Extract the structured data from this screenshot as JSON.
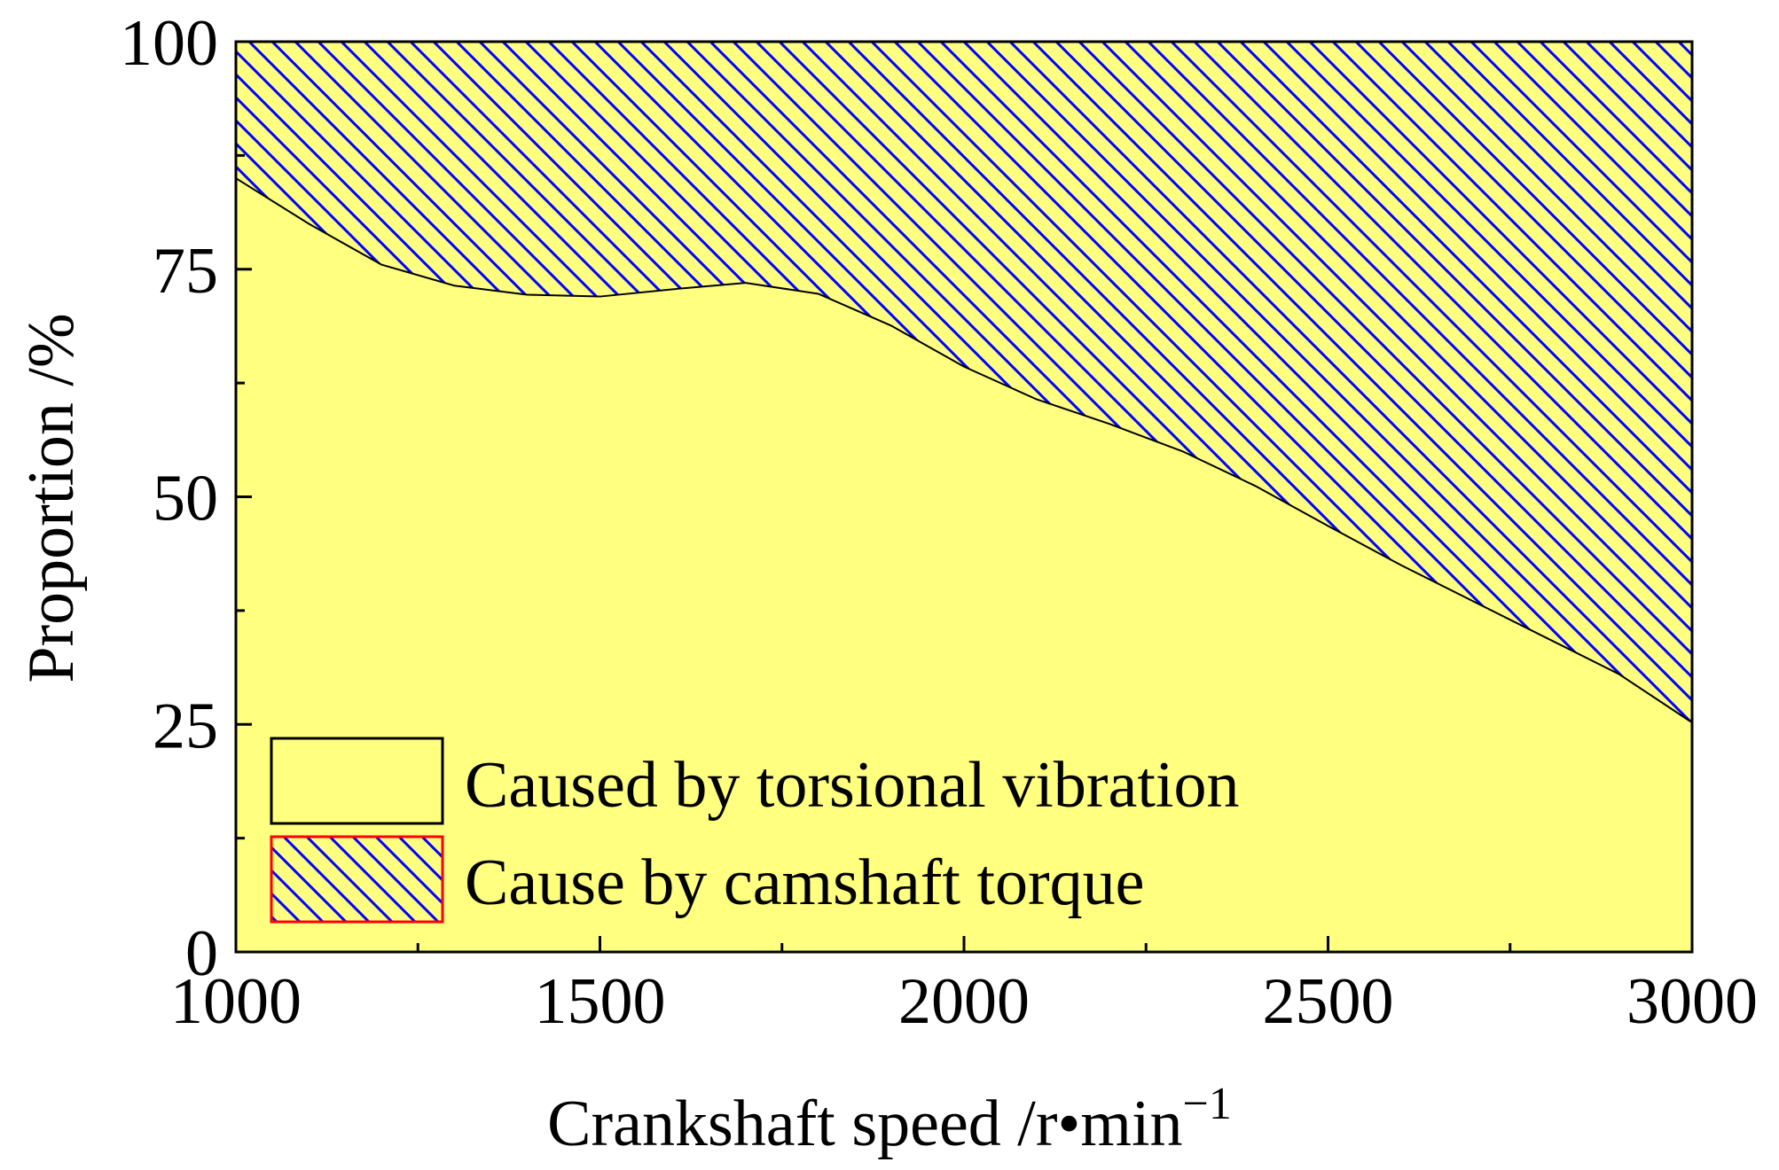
{
  "chart_data": {
    "type": "area",
    "stacked": true,
    "x": [
      1000,
      1100,
      1200,
      1300,
      1400,
      1500,
      1600,
      1700,
      1800,
      1900,
      2000,
      2100,
      2200,
      2300,
      2400,
      2500,
      2600,
      2700,
      2800,
      2900,
      3000
    ],
    "series": [
      {
        "name": "Caused by torsional vibration",
        "values": [
          85,
          80,
          75.5,
          73.2,
          72.2,
          72,
          72.8,
          73.5,
          72.3,
          68.8,
          64.3,
          60.7,
          58,
          55,
          51.2,
          46.8,
          42.5,
          38.5,
          34.5,
          30.5,
          25.2
        ],
        "color": "#ffff80",
        "edge_color": "#000000"
      },
      {
        "name": "Cause by camshaft torque",
        "values": [
          15,
          20,
          24.5,
          26.8,
          27.8,
          28,
          27.2,
          26.5,
          27.7,
          31.2,
          35.7,
          39.3,
          42,
          45,
          48.8,
          53.2,
          57.5,
          61.5,
          65.5,
          69.5,
          74.8
        ],
        "color": "#ffff80",
        "hatch_color": "#0000ff",
        "hatch": "\\\\",
        "edge_color": "#ff0000"
      }
    ],
    "xlabel": "Crankshaft speed /r•min",
    "xlabel_superscript": "−1",
    "ylabel": "Proportion /%",
    "xlim": [
      1000,
      3000
    ],
    "ylim": [
      0,
      100
    ],
    "xticks": [
      1000,
      1500,
      2000,
      2500,
      3000
    ],
    "xtick_labels": [
      "1000",
      "1500",
      "2000",
      "2500",
      "3000"
    ],
    "yticks": [
      0,
      25,
      50,
      75,
      100
    ],
    "ytick_labels": [
      "0",
      "25",
      "50",
      "75",
      "100"
    ],
    "x_minor_step": 250,
    "y_minor_step": 12.5,
    "grid": false,
    "legend_position": "bottom-left"
  }
}
